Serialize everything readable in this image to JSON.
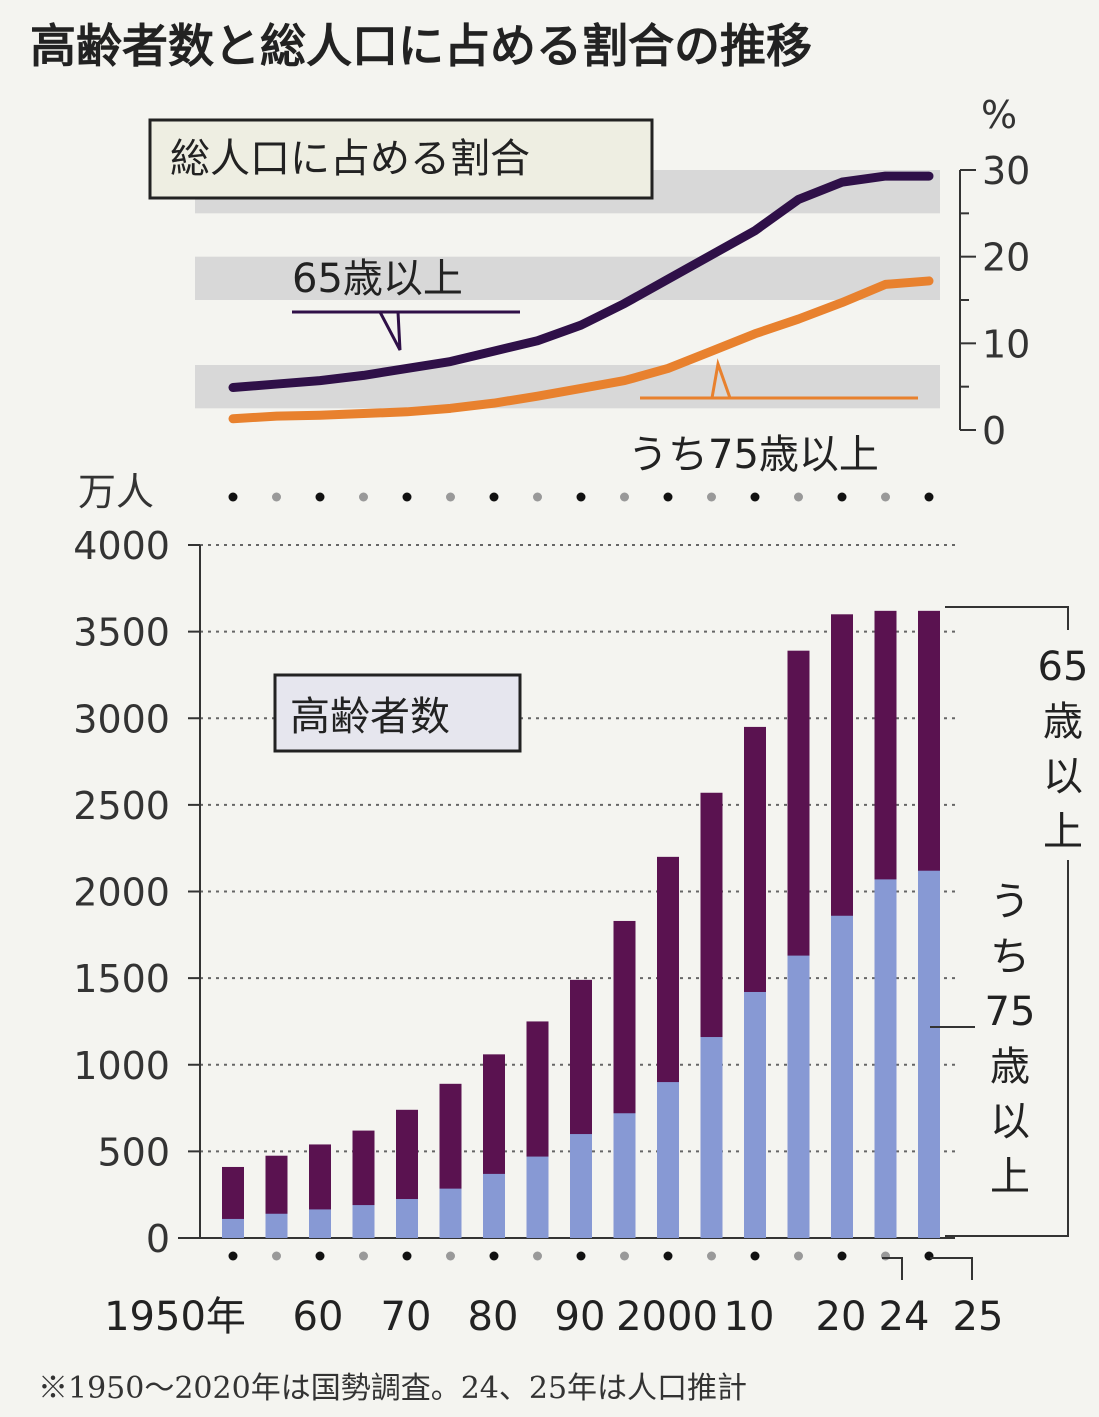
{
  "title": "高齢者数と総人口に占める割合の推移",
  "note": "※1950～2020年は国勢調査。24、25年は人口推計",
  "colors": {
    "age65": "#5a1250",
    "age75": "#8799d4",
    "line65": "#2f1048",
    "line75": "#e8812e",
    "band": "#d8d8d8",
    "boxFill": "#eeeee2",
    "boxFill2": "#e6e6ee"
  },
  "chart_data": [
    {
      "type": "line",
      "box_label": "総人口に占める割合",
      "yunit": "%",
      "ylim": [
        0,
        30
      ],
      "yticks": [
        "0",
        "10",
        "20",
        "30"
      ],
      "x": [
        1950,
        1955,
        1960,
        1965,
        1970,
        1975,
        1980,
        1985,
        1990,
        1995,
        2000,
        2005,
        2010,
        2015,
        2020,
        2024,
        2025
      ],
      "series": [
        {
          "name": "65歳以上",
          "values": [
            4.9,
            5.3,
            5.7,
            6.3,
            7.1,
            7.9,
            9.1,
            10.3,
            12.1,
            14.6,
            17.4,
            20.2,
            23.0,
            26.6,
            28.6,
            29.3,
            29.3
          ]
        },
        {
          "name": "うち75歳以上",
          "values": [
            1.3,
            1.6,
            1.7,
            1.9,
            2.1,
            2.5,
            3.1,
            3.9,
            4.8,
            5.7,
            7.1,
            9.1,
            11.1,
            12.8,
            14.7,
            16.8,
            17.2
          ]
        }
      ]
    },
    {
      "type": "bar",
      "box_label": "高齢者数",
      "yunit": "万人",
      "ylim": [
        0,
        4000
      ],
      "yticks": [
        "0",
        "500",
        "1000",
        "1500",
        "2000",
        "2500",
        "3000",
        "3500",
        "4000"
      ],
      "x": [
        1950,
        1955,
        1960,
        1965,
        1970,
        1975,
        1980,
        1985,
        1990,
        1995,
        2000,
        2005,
        2010,
        2015,
        2020,
        2024,
        2025
      ],
      "x_labels": [
        "1950年",
        "60",
        "70",
        "80",
        "90",
        "2000",
        "10",
        "20",
        "24",
        "25"
      ],
      "series": [
        {
          "name": "65歳以上",
          "values": [
            410,
            475,
            540,
            620,
            740,
            890,
            1060,
            1250,
            1490,
            1830,
            2200,
            2570,
            2950,
            3390,
            3600,
            3620,
            3620
          ]
        },
        {
          "name": "うち75歳以上",
          "values": [
            110,
            140,
            165,
            190,
            225,
            285,
            370,
            470,
            600,
            720,
            900,
            1160,
            1420,
            1630,
            1860,
            2070,
            2120
          ]
        }
      ]
    }
  ]
}
